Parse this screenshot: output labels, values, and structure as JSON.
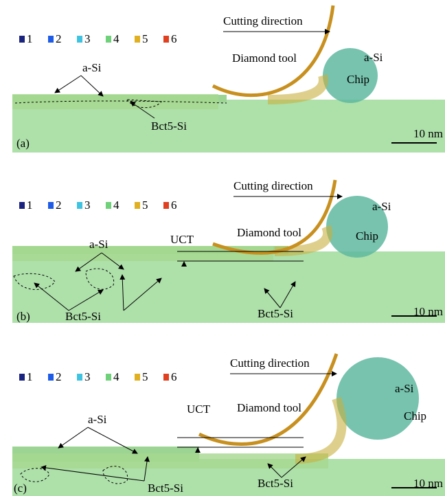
{
  "legend": [
    {
      "label": "1",
      "color": "#1a237e"
    },
    {
      "label": "2",
      "color": "#1e5be6"
    },
    {
      "label": "3",
      "color": "#3fc3e0"
    },
    {
      "label": "4",
      "color": "#6fd27a"
    },
    {
      "label": "5",
      "color": "#e0b020"
    },
    {
      "label": "6",
      "color": "#e04020"
    }
  ],
  "panels": [
    {
      "label": "(a)",
      "annotations": {
        "cutting_direction": "Cutting direction",
        "tool": "Diamond tool",
        "chip_phase": "a-Si",
        "chip": "Chip",
        "surface_phase": "a-Si",
        "defect": "Bct5-Si",
        "scale": "10 nm"
      }
    },
    {
      "label": "(b)",
      "annotations": {
        "cutting_direction": "Cutting direction",
        "tool": "Diamond tool",
        "chip_phase": "a-Si",
        "chip": "Chip",
        "surface_phase": "a-Si",
        "uct": "UCT",
        "defect": "Bct5-Si",
        "defect2": "Bct5-Si",
        "scale": "10 nm"
      }
    },
    {
      "label": "(c)",
      "annotations": {
        "cutting_direction": "Cutting direction",
        "tool": "Diamond tool",
        "chip_phase": "a-Si",
        "chip": "Chip",
        "surface_phase": "a-Si",
        "uct": "UCT",
        "defect": "Bct5-Si",
        "defect2": "Bct5-Si",
        "scale": "10 nm"
      }
    }
  ]
}
